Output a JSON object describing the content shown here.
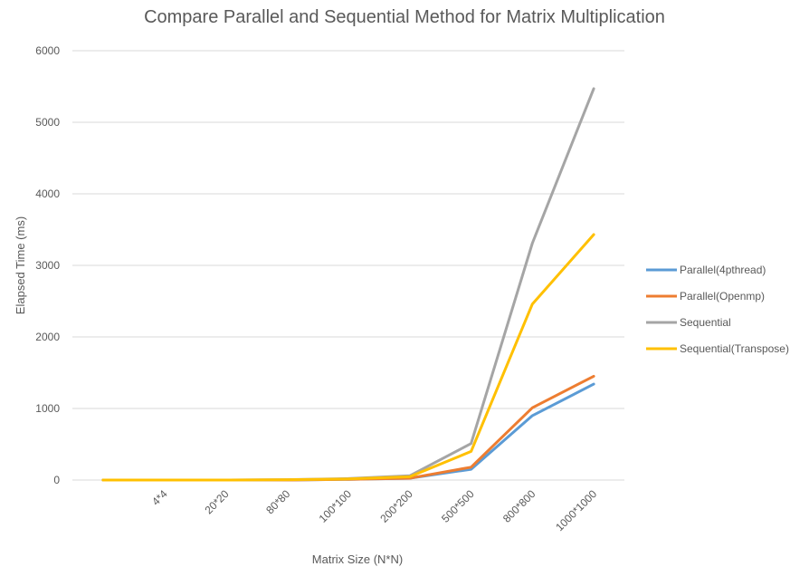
{
  "chart_data": {
    "type": "line",
    "title": "Compare Parallel and Sequential Method for Matrix Multiplication",
    "xlabel": "Matrix Size (N*N)",
    "ylabel": "Elapsed Time (ms)",
    "x_tick_labels": [
      "",
      "4*4",
      "20*20",
      "80*80",
      "100*100",
      "200*200",
      "500*500",
      "800*800",
      "1000*1000"
    ],
    "ylim": [
      0,
      6000
    ],
    "y_ticks": [
      0,
      1000,
      2000,
      3000,
      4000,
      5000,
      6000
    ],
    "grid": true,
    "legend_position": "right",
    "series": [
      {
        "name": "Parallel(4pthread)",
        "color": "#5B9BD5",
        "values": [
          0,
          0,
          0,
          0,
          10,
          25,
          150,
          900,
          1340
        ]
      },
      {
        "name": "Parallel(Openmp)",
        "color": "#ED7D31",
        "values": [
          0,
          0,
          0,
          0,
          10,
          25,
          180,
          1010,
          1450
        ]
      },
      {
        "name": "Sequential",
        "color": "#A5A5A5",
        "values": [
          0,
          0,
          0,
          5,
          20,
          60,
          510,
          3310,
          5470
        ]
      },
      {
        "name": "Sequential(Transpose)",
        "color": "#FFC000",
        "values": [
          0,
          0,
          0,
          5,
          15,
          45,
          400,
          2460,
          3430
        ]
      }
    ]
  }
}
